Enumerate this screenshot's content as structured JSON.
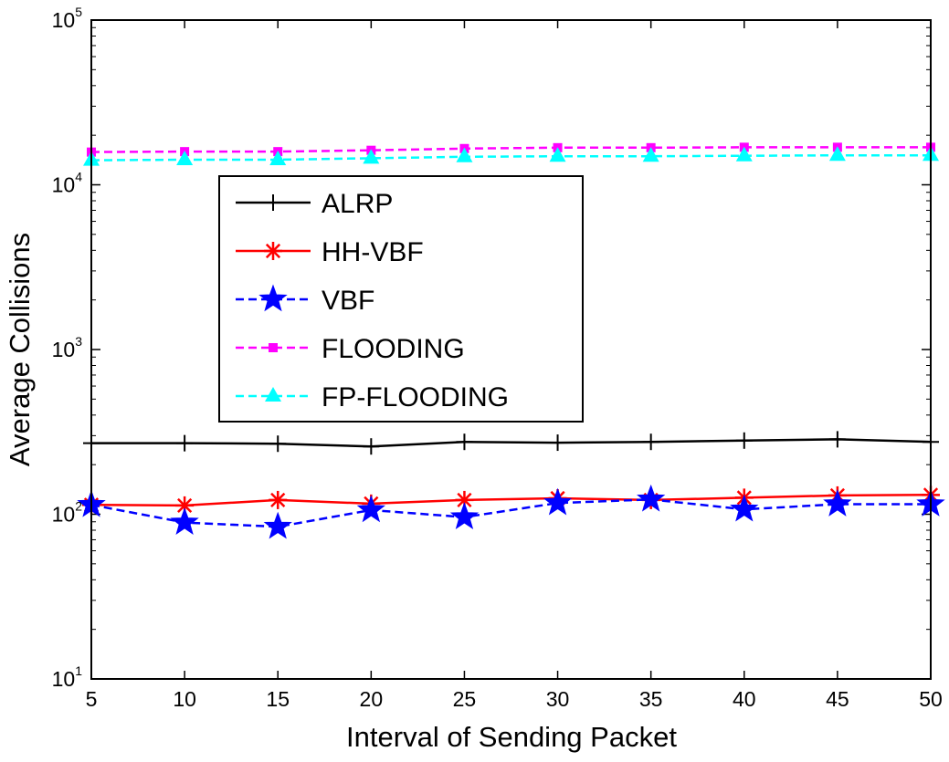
{
  "chart_data": {
    "type": "line",
    "title": "",
    "xlabel": "Interval of Sending Packet",
    "ylabel": "Average Collisions",
    "yscale": "log",
    "xlim": [
      5,
      50
    ],
    "ylim": [
      10,
      100000
    ],
    "grid": false,
    "legend_position": "center-left",
    "x": [
      5,
      10,
      15,
      20,
      25,
      30,
      35,
      40,
      45,
      50
    ],
    "x_tick_labels": [
      "5",
      "10",
      "15",
      "20",
      "25",
      "30",
      "35",
      "40",
      "45",
      "50"
    ],
    "y_ticks": [
      {
        "value": 10,
        "base": "10",
        "exponent": "1"
      },
      {
        "value": 100,
        "base": "10",
        "exponent": "2"
      },
      {
        "value": 1000,
        "base": "10",
        "exponent": "3"
      },
      {
        "value": 10000,
        "base": "10",
        "exponent": "4"
      },
      {
        "value": 100000,
        "base": "10",
        "exponent": "5"
      }
    ],
    "series": [
      {
        "name": "ALRP",
        "color": "#000000",
        "dash": "solid",
        "marker": "plus",
        "values": [
          270,
          270,
          268,
          258,
          275,
          272,
          275,
          280,
          285,
          275
        ]
      },
      {
        "name": "HH-VBF",
        "color": "#ff0000",
        "dash": "solid",
        "marker": "asterisk",
        "values": [
          114,
          113,
          122,
          116,
          122,
          125,
          122,
          126,
          130,
          131
        ]
      },
      {
        "name": "VBF",
        "color": "#0000ff",
        "dash": "dashed",
        "marker": "star",
        "values": [
          114,
          89,
          84,
          106,
          96,
          117,
          123,
          107,
          115,
          115
        ]
      },
      {
        "name": "FLOODING",
        "color": "#ff00ff",
        "dash": "dashed",
        "marker": "square",
        "values": [
          15800,
          15900,
          15900,
          16200,
          16600,
          16800,
          16800,
          16900,
          16900,
          16900
        ]
      },
      {
        "name": "FP-FLOODING",
        "color": "#00ffff",
        "dash": "dashed",
        "marker": "triangle",
        "values": [
          14100,
          14200,
          14200,
          14500,
          14800,
          14900,
          14900,
          15000,
          15100,
          15100
        ]
      }
    ]
  }
}
